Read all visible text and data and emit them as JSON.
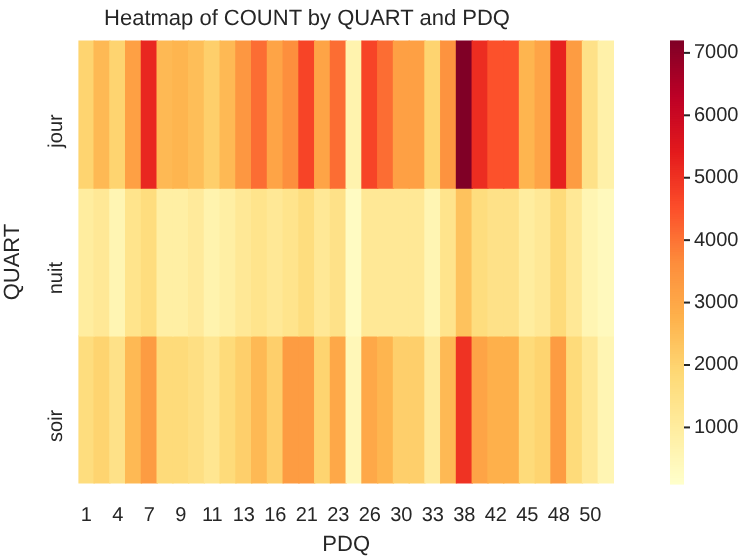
{
  "chart_data": {
    "type": "heatmap",
    "title": "Heatmap of COUNT by QUART and PDQ",
    "xlabel": "PDQ",
    "ylabel": "QUART",
    "categories": [
      "1",
      null,
      "4",
      null,
      "7",
      null,
      "9",
      null,
      "11",
      null,
      "13",
      null,
      "16",
      null,
      "21",
      null,
      "23",
      null,
      "26",
      null,
      "30",
      null,
      "33",
      null,
      "38",
      null,
      "42",
      null,
      "45",
      null,
      "48",
      null,
      "50",
      null
    ],
    "y_categories": [
      "jour",
      "nuit",
      "soir"
    ],
    "cells": [
      [
        2000,
        2600,
        2000,
        3200,
        5200,
        2600,
        2700,
        2500,
        2100,
        2600,
        3400,
        4100,
        3100,
        3600,
        4700,
        3100,
        4100,
        700,
        4700,
        4100,
        3200,
        3200,
        2000,
        3500,
        7200,
        5100,
        4500,
        4500,
        2700,
        3100,
        5300,
        3300,
        1500,
        800
      ],
      [
        1000,
        1200,
        600,
        1400,
        1700,
        900,
        900,
        1100,
        700,
        900,
        1200,
        1400,
        1200,
        1400,
        1700,
        1200,
        1500,
        300,
        1200,
        1200,
        1200,
        1200,
        600,
        1400,
        2400,
        1700,
        1500,
        1500,
        1000,
        1200,
        1800,
        1200,
        600,
        400
      ],
      [
        1700,
        2000,
        1500,
        2600,
        3300,
        1800,
        1800,
        1600,
        1300,
        1800,
        2100,
        2600,
        2100,
        3300,
        3300,
        2000,
        3000,
        500,
        3000,
        2700,
        2100,
        2100,
        1100,
        2600,
        5000,
        3100,
        2800,
        2800,
        1800,
        2000,
        3300,
        1800,
        1200,
        600
      ]
    ],
    "clim": [
      100,
      7200
    ],
    "cticks": [
      1000,
      2000,
      3000,
      4000,
      5000,
      6000,
      7000
    ]
  }
}
